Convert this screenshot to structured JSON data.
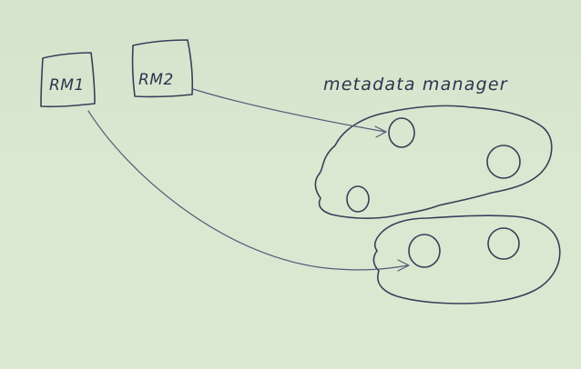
{
  "diagram": {
    "nodes": {
      "rm1": {
        "label": "RM1"
      },
      "rm2": {
        "label": "RM2"
      }
    },
    "manager": {
      "label": "metadata manager"
    },
    "edges": [
      {
        "from": "RM2",
        "to": "upper cluster node"
      },
      {
        "from": "RM1",
        "to": "lower cluster node"
      }
    ]
  },
  "colors": {
    "board": "#d7e6cf",
    "ink": "#3a3f58"
  }
}
